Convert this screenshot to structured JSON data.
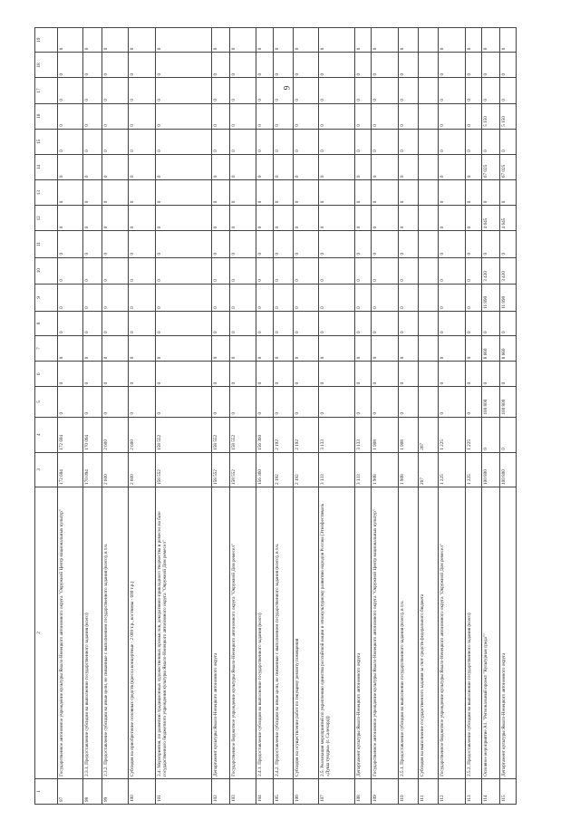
{
  "page_number": "9",
  "columns": [
    "1",
    "2",
    "3",
    "4",
    "5",
    "6",
    "7",
    "8",
    "9",
    "10",
    "11",
    "12",
    "13",
    "14",
    "15",
    "16",
    "17",
    "18",
    "19"
  ],
  "rows": [
    {
      "n": "97",
      "name": "Государственное автономное учреждение культуры Ямало-Ненецкого автономного округа \"Окружной Центр национальных культур\"",
      "v": [
        "172 694",
        "172 694",
        "0",
        "0",
        "0",
        "0",
        "0",
        "0",
        "0",
        "0",
        "0",
        "0",
        "0",
        "0",
        "0",
        "0",
        "0"
      ]
    },
    {
      "n": "98",
      "name": "2.3.1. Предоставление субсидии на выполнение государственного задания (всего)",
      "v": [
        "170 094",
        "170 094",
        "0",
        "0",
        "0",
        "0",
        "0",
        "0",
        "0",
        "0",
        "0",
        "0",
        "0",
        "0",
        "0",
        "0",
        "0"
      ]
    },
    {
      "n": "99",
      "name": "2.3.2. Предоставление субсидии на иные цели, не связанные с выполнением государственного задания (всего), в т.ч.",
      "v": [
        "2 600",
        "2 600",
        "0",
        "0",
        "0",
        "0",
        "0",
        "0",
        "0",
        "0",
        "0",
        "0",
        "0",
        "0",
        "0",
        "0",
        "0"
      ]
    },
    {
      "n": "100",
      "name": "Субсидия на приобретение основных средств (кресла концертные - 2 000 т.р., костюмы - 600 т.р.)",
      "v": [
        "2 600",
        "2 600",
        "0",
        "0",
        "0",
        "0",
        "0",
        "0",
        "0",
        "0",
        "0",
        "0",
        "0",
        "0",
        "0",
        "0",
        "0"
      ]
    },
    {
      "n": "101",
      "name": "2.4. Мероприятия, по развитию традиционных художественных промыслов, декоративно-прикладного творчества и ремесел на базе государственного бюджетного учреждения культуры Ямало-Ненецкого автономного округа \"Окружной Дом ремесел\"",
      "v": [
        "158 552",
        "158 552",
        "0",
        "0",
        "0",
        "0",
        "0",
        "0",
        "0",
        "0",
        "0",
        "0",
        "0",
        "0",
        "0",
        "0",
        "0"
      ]
    },
    {
      "n": "102",
      "name": "Департамент культуры Ямало-Ненецкого автономного округа",
      "v": [
        "158 552",
        "158 552",
        "0",
        "0",
        "0",
        "0",
        "0",
        "0",
        "0",
        "0",
        "0",
        "0",
        "0",
        "0",
        "0",
        "0",
        "0"
      ]
    },
    {
      "n": "103",
      "name": "Государственное бюджетное учреждение культуры Ямало-Ненецкого автономного округа \"Окружной Дом ремесел\"",
      "v": [
        "158 552",
        "158 552",
        "0",
        "0",
        "0",
        "0",
        "0",
        "0",
        "0",
        "0",
        "0",
        "0",
        "0",
        "0",
        "0",
        "0",
        "0"
      ]
    },
    {
      "n": "104",
      "name": "2.4.1. Предоставление субсидии на выполнение государственного задания (всего)",
      "v": [
        "156 360",
        "156 360",
        "0",
        "0",
        "0",
        "0",
        "0",
        "0",
        "0",
        "0",
        "0",
        "0",
        "0",
        "0",
        "0",
        "0",
        "0"
      ]
    },
    {
      "n": "105",
      "name": "2.4.2. Предоставление субсидии на иные цели, не связанные с выполнением государственного задания (всего), в т.ч.",
      "v": [
        "2 192",
        "2 192",
        "0",
        "0",
        "0",
        "0",
        "0",
        "0",
        "0",
        "0",
        "0",
        "0",
        "0",
        "0",
        "0",
        "0",
        "0"
      ]
    },
    {
      "n": "106",
      "name": "Субсидия на осуществление работ по текущему ремонту помещения",
      "v": [
        "2 192",
        "2 192",
        "0",
        "0",
        "0",
        "0",
        "0",
        "0",
        "0",
        "0",
        "0",
        "0",
        "0",
        "0",
        "0",
        "0",
        "0"
      ]
    },
    {
      "n": "107",
      "name": "2.5. Реализация мероприятий по укреплению единства российской нации и этнокультурному развитию народов России (Этнофестиваль «Душа тундры» (г. Салехард))",
      "v": [
        "3 133",
        "3 133",
        "0",
        "0",
        "0",
        "0",
        "0",
        "0",
        "0",
        "0",
        "0",
        "0",
        "0",
        "0",
        "0",
        "0",
        "0"
      ]
    },
    {
      "n": "108",
      "name": "Департамент культуры Ямало-Ненецкого автономного округа",
      "v": [
        "3 133",
        "3 133",
        "0",
        "0",
        "0",
        "0",
        "0",
        "0",
        "0",
        "0",
        "0",
        "0",
        "0",
        "0",
        "0",
        "0",
        "0"
      ]
    },
    {
      "n": "109",
      "name": "Государственное автономное учреждение культуры Ямало-Ненецкого автономного округа \"Окружной Центр национальных культур\"",
      "v": [
        "1 908",
        "1 908",
        "0",
        "0",
        "0",
        "0",
        "0",
        "0",
        "0",
        "0",
        "0",
        "0",
        "0",
        "0",
        "0",
        "0",
        "0"
      ]
    },
    {
      "n": "110",
      "name": "2.5.1. Предоставление субсидии на выполнение государственного задания (всего), в т.ч.",
      "v": [
        "1 908",
        "1 908",
        "0",
        "0",
        "0",
        "0",
        "0",
        "0",
        "0",
        "0",
        "0",
        "0",
        "0",
        "0",
        "0",
        "0",
        "0"
      ]
    },
    {
      "n": "111",
      "name": "Субсидия на выполнение государственного задания за счет средств федерального бюджета",
      "v": [
        "267",
        "267",
        "",
        "",
        "",
        "",
        "",
        "",
        "",
        "",
        "",
        "",
        "",
        "",
        "",
        "",
        ""
      ]
    },
    {
      "n": "112",
      "name": "Государственное бюджетное учреждение культуры Ямало-Ненецкого автономного округа \"Окружной Дом ремесел\"",
      "v": [
        "1 225",
        "1 225",
        "0",
        "0",
        "0",
        "0",
        "0",
        "0",
        "0",
        "0",
        "0",
        "0",
        "0",
        "0",
        "0",
        "0",
        "0"
      ]
    },
    {
      "n": "113",
      "name": "2.5.2. Предоставление субсидии на выполнение государственного задания (всего)",
      "v": [
        "1 225",
        "1 225",
        "0",
        "0",
        "0",
        "0",
        "0",
        "0",
        "0",
        "0",
        "0",
        "0",
        "0",
        "0",
        "0",
        "0",
        "0"
      ]
    },
    {
      "n": "114",
      "name": "Основное мероприятие A1. \"Региональный проект \"Культурная среда\"\"",
      "v": [
        "100 800",
        "0",
        "100 800",
        "0",
        "8 660",
        "0",
        "11 890",
        "3 430",
        "0",
        "4 645",
        "0",
        "67 025",
        "0",
        "5 150",
        "0",
        "0",
        "0"
      ]
    },
    {
      "n": "115",
      "name": "Департамент культуры Ямало-Ненецкого автономного округа",
      "v": [
        "100 800",
        "0",
        "100 800",
        "0",
        "8 660",
        "0",
        "11 890",
        "3 430",
        "0",
        "4 645",
        "0",
        "67 025",
        "0",
        "5 150",
        "0",
        "0",
        "0"
      ]
    }
  ]
}
